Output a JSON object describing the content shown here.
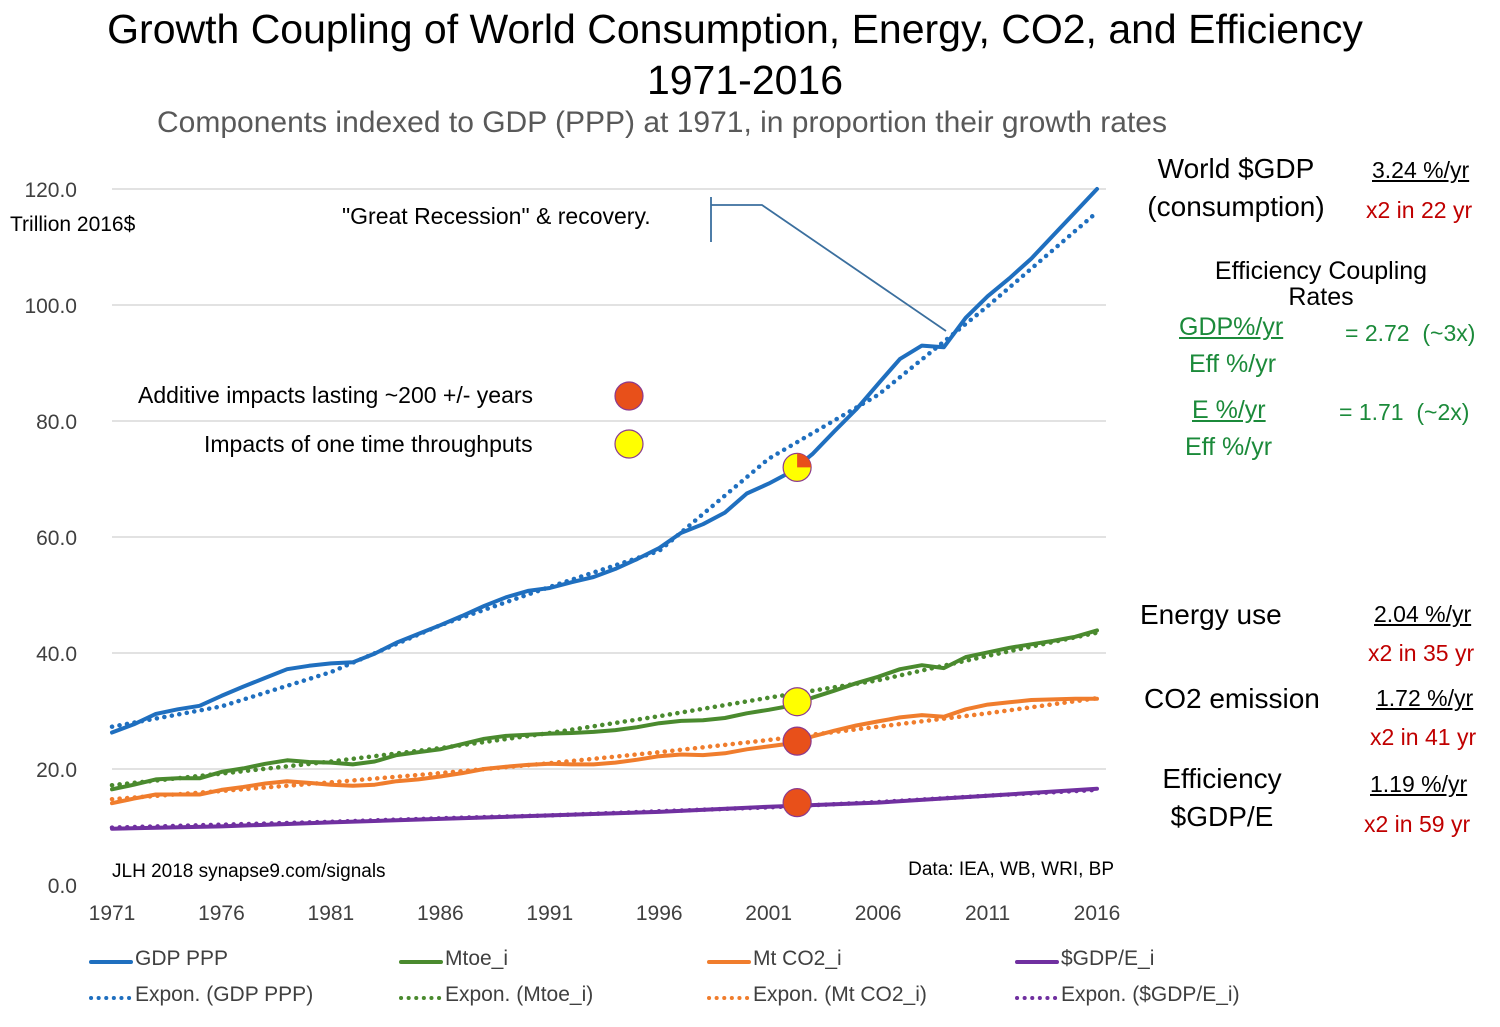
{
  "title_line1": "Growth Coupling of World Consumption, Energy, CO2, and Efficiency",
  "title_line2": "1971-2016",
  "subtitle": "Components indexed to GDP (PPP) at 1971, in proportion their growth rates",
  "right_panel": {
    "gdp_heading_1": "World $GDP",
    "gdp_heading_2": "(consumption)",
    "gdp_rate": "3.24 %/yr",
    "gdp_double": "x2 in 22 yr",
    "coupling_heading_1": "Efficiency Coupling",
    "coupling_heading_2": "Rates",
    "ratio1_num": "GDP%/yr",
    "ratio1_den": "Eff %/yr",
    "ratio1_value": "= 2.72  (~3x)",
    "ratio2_num": "E %/yr",
    "ratio2_den": "Eff %/yr",
    "ratio2_value": "= 1.71  (~2x)",
    "energy_heading": "Energy use",
    "energy_rate": "2.04 %/yr",
    "energy_double": "x2 in 35 yr",
    "co2_heading": "CO2 emission",
    "co2_rate": "1.72 %/yr",
    "co2_double": "x2 in 41 yr",
    "eff_heading_1": "Efficiency",
    "eff_heading_2": "$GDP/E",
    "eff_rate": "1.19 %/yr",
    "eff_double": "x2 in 59 yr"
  },
  "legend": [
    {
      "label": "GDP PPP",
      "color": "#1f6fbf",
      "style": "solid"
    },
    {
      "label": "Mtoe_i",
      "color": "#4a8a2e",
      "style": "solid"
    },
    {
      "label": "Mt CO2_i",
      "color": "#f07d2d",
      "style": "solid"
    },
    {
      "label": "$GDP/E_i",
      "color": "#7030a0",
      "style": "solid"
    },
    {
      "label": "Expon. (GDP PPP)",
      "color": "#1f6fbf",
      "style": "dotted"
    },
    {
      "label": "Expon. (Mtoe_i)",
      "color": "#4a8a2e",
      "style": "dotted"
    },
    {
      "label": "Expon. (Mt CO2_i)",
      "color": "#f07d2d",
      "style": "dotted"
    },
    {
      "label": "Expon. ($GDP/E_i)",
      "color": "#7030a0",
      "style": "dotted"
    }
  ],
  "chart_data": {
    "type": "line",
    "ylabel": "Trillion 2016$",
    "ylim": [
      0,
      120
    ],
    "yticks": [
      "0.0",
      "20.0",
      "40.0",
      "60.0",
      "80.0",
      "100.0",
      "120.0"
    ],
    "xlim": [
      1971,
      2016
    ],
    "xticks": [
      "1971",
      "1976",
      "1981",
      "1986",
      "1991",
      "1996",
      "2001",
      "2006",
      "2011",
      "2016"
    ],
    "grid": "horizontal",
    "legend_position": "bottom",
    "series": [
      {
        "name": "GDP PPP",
        "color": "#1f6fbf",
        "style": "solid",
        "x": [
          1971,
          1972,
          1973,
          1974,
          1975,
          1976,
          1977,
          1978,
          1979,
          1980,
          1981,
          1982,
          1983,
          1984,
          1985,
          1986,
          1987,
          1988,
          1989,
          1990,
          1991,
          1992,
          1993,
          1994,
          1995,
          1996,
          1997,
          1998,
          1999,
          2000,
          2001,
          2002,
          2003,
          2004,
          2005,
          2006,
          2007,
          2008,
          2009,
          2010,
          2011,
          2012,
          2013,
          2014,
          2015,
          2016
        ],
        "values": [
          26.3,
          27.7,
          29.5,
          30.3,
          30.9,
          32.6,
          34.2,
          35.7,
          37.2,
          37.8,
          38.2,
          38.4,
          39.9,
          41.8,
          43.3,
          44.8,
          46.4,
          48.1,
          49.6,
          50.7,
          51.2,
          52.2,
          53.1,
          54.5,
          56.2,
          58.1,
          60.7,
          62.2,
          64.2,
          67.5,
          69.2,
          71.2,
          74.3,
          78.2,
          82.0,
          86.4,
          90.7,
          93.0,
          92.7,
          97.8,
          101.5,
          104.6,
          108.0,
          112.0,
          116.0,
          120.0
        ]
      },
      {
        "name": "Expon. (GDP PPP)",
        "color": "#1f6fbf",
        "style": "dotted",
        "x": [
          1971,
          1976,
          1981,
          1986,
          1991,
          1996,
          2001,
          2006,
          2011,
          2016
        ],
        "values": [
          27.3,
          30.8,
          36.7,
          44.8,
          51.4,
          57.6,
          73.5,
          84.5,
          99.8,
          116.0
        ]
      },
      {
        "name": "Mtoe_i",
        "color": "#4a8a2e",
        "style": "solid",
        "x": [
          1971,
          1972,
          1973,
          1974,
          1975,
          1976,
          1977,
          1978,
          1979,
          1980,
          1981,
          1982,
          1983,
          1984,
          1985,
          1986,
          1987,
          1988,
          1989,
          1990,
          1991,
          1992,
          1993,
          1994,
          1995,
          1996,
          1997,
          1998,
          1999,
          2000,
          2001,
          2002,
          2003,
          2004,
          2005,
          2006,
          2007,
          2008,
          2009,
          2010,
          2011,
          2012,
          2013,
          2014,
          2015,
          2016
        ],
        "values": [
          16.5,
          17.3,
          18.2,
          18.4,
          18.4,
          19.5,
          20.1,
          20.9,
          21.5,
          21.2,
          21.1,
          20.8,
          21.3,
          22.4,
          22.9,
          23.4,
          24.3,
          25.2,
          25.7,
          25.9,
          26.1,
          26.2,
          26.4,
          26.7,
          27.2,
          27.9,
          28.3,
          28.4,
          28.8,
          29.6,
          30.2,
          30.9,
          32.3,
          33.5,
          34.8,
          35.9,
          37.2,
          37.9,
          37.4,
          39.3,
          40.1,
          40.9,
          41.5,
          42.1,
          42.8,
          43.9
        ]
      },
      {
        "name": "Expon. (Mtoe_i)",
        "color": "#4a8a2e",
        "style": "dotted",
        "x": [
          1971,
          1976,
          1981,
          1986,
          1991,
          1996,
          2001,
          2006,
          2011,
          2016
        ],
        "values": [
          17.2,
          19.2,
          21.3,
          23.6,
          26.2,
          29.1,
          32.3,
          35.3,
          39.5,
          43.5
        ]
      },
      {
        "name": "Mt CO2_i",
        "color": "#f07d2d",
        "style": "solid",
        "x": [
          1971,
          1972,
          1973,
          1974,
          1975,
          1976,
          1977,
          1978,
          1979,
          1980,
          1981,
          1982,
          1983,
          1984,
          1985,
          1986,
          1987,
          1988,
          1989,
          1990,
          1991,
          1992,
          1993,
          1994,
          1995,
          1996,
          1997,
          1998,
          1999,
          2000,
          2001,
          2002,
          2003,
          2004,
          2005,
          2006,
          2007,
          2008,
          2009,
          2010,
          2011,
          2012,
          2013,
          2014,
          2015,
          2016
        ],
        "values": [
          14.1,
          14.9,
          15.6,
          15.6,
          15.6,
          16.4,
          16.9,
          17.5,
          17.9,
          17.6,
          17.3,
          17.1,
          17.3,
          17.9,
          18.2,
          18.7,
          19.3,
          20.0,
          20.4,
          20.7,
          20.9,
          20.8,
          20.8,
          21.1,
          21.6,
          22.2,
          22.5,
          22.4,
          22.7,
          23.4,
          23.9,
          24.4,
          25.6,
          26.6,
          27.5,
          28.2,
          28.9,
          29.3,
          29.0,
          30.3,
          31.1,
          31.5,
          31.9,
          32.0,
          32.1,
          32.1
        ]
      },
      {
        "name": "Expon. (Mt CO2_i)",
        "color": "#f07d2d",
        "style": "dotted",
        "x": [
          1971,
          1976,
          1981,
          1986,
          1991,
          1996,
          2001,
          2006,
          2011,
          2016
        ],
        "values": [
          14.8,
          16.2,
          17.7,
          19.3,
          21.0,
          22.9,
          25.0,
          27.3,
          29.6,
          32.2
        ]
      },
      {
        "name": "$GDP/E_i",
        "color": "#7030a0",
        "style": "solid",
        "x": [
          1971,
          1976,
          1981,
          1986,
          1991,
          1996,
          2001,
          2006,
          2011,
          2016
        ],
        "values": [
          9.7,
          10.1,
          10.8,
          11.4,
          12.0,
          12.6,
          13.5,
          14.2,
          15.4,
          16.6
        ]
      },
      {
        "name": "Expon. ($GDP/E_i)",
        "color": "#7030a0",
        "style": "dotted",
        "x": [
          1971,
          1976,
          1981,
          1986,
          1991,
          1996,
          2001,
          2006,
          2011,
          2016
        ],
        "values": [
          9.9,
          10.4,
          10.9,
          11.5,
          12.0,
          12.7,
          13.4,
          14.3,
          15.4,
          16.4
        ]
      }
    ],
    "markers": [
      {
        "x": 2002.3,
        "y": 72.0,
        "color": "#ffff00",
        "kind": "one-time"
      },
      {
        "x": 2002.3,
        "y": 31.6,
        "color": "#ffff00",
        "kind": "one-time"
      },
      {
        "x": 2002.3,
        "y": 24.8,
        "color": "#e8501a",
        "kind": "additive"
      },
      {
        "x": 2002.3,
        "y": 14.2,
        "color": "#e8501a",
        "kind": "additive"
      }
    ],
    "annotations": {
      "recession": "\"Great Recession\" & recovery.",
      "additive_impacts": "Additive impacts lasting ~200 +/- years",
      "one_time_impacts": "Impacts of one time throughputs",
      "credit": "JLH 2018  synapse9.com/signals",
      "data_source": "Data: IEA, WB, WRI, BP",
      "additive_color": "#e8501a",
      "one_time_color": "#ffff00"
    }
  }
}
